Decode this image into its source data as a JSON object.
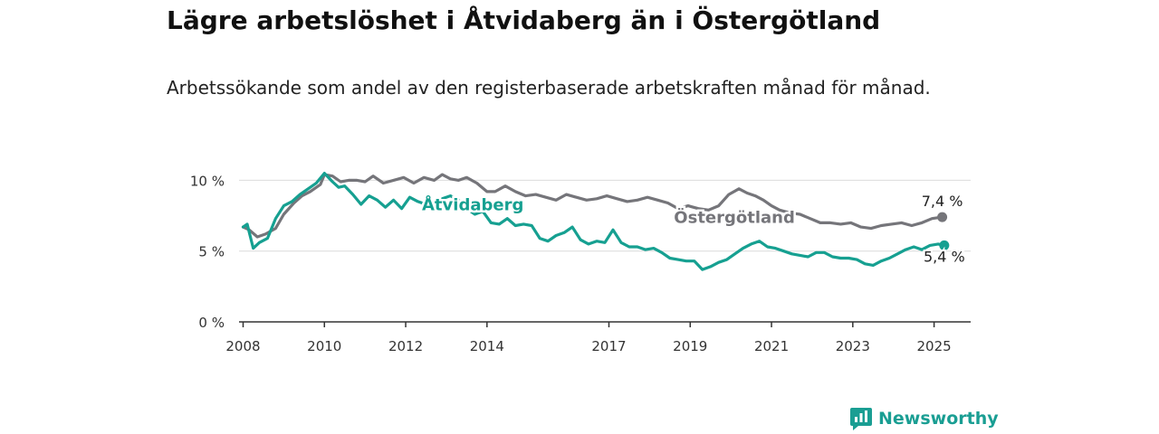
{
  "title": "Lägre arbetslöshet i Åtvidaberg än i Östergötland",
  "subtitle": "Arbetssökande som andel av den registerbaserade arbetskraften månad för månad.",
  "brand": "Newsworthy",
  "colors": {
    "series_a": "#16a091",
    "series_b": "#75757a",
    "grid": "#dcdcdc",
    "axis": "#333333",
    "brand": "#1a9e93"
  },
  "chart_data": {
    "type": "line",
    "ylim": [
      0,
      10.6
    ],
    "xlim": [
      2007.9,
      2025.9
    ],
    "yticks": [
      0,
      5,
      10
    ],
    "ytick_labels": [
      "0 %",
      "5 %",
      "10 %"
    ],
    "xticks": [
      2008,
      2010,
      2012,
      2014,
      2017,
      2019,
      2021,
      2023,
      2025
    ],
    "xtick_labels": [
      "2008",
      "2010",
      "2012",
      "2014",
      "2017",
      "2019",
      "2021",
      "2023",
      "2025"
    ],
    "grid": true,
    "series": [
      {
        "name": "Östergötland",
        "end_label": "7,4 %",
        "x": [
          2008.0,
          2008.15,
          2008.35,
          2008.55,
          2008.8,
          2009.0,
          2009.25,
          2009.45,
          2009.65,
          2009.9,
          2010.0,
          2010.2,
          2010.4,
          2010.6,
          2010.8,
          2011.0,
          2011.2,
          2011.45,
          2011.7,
          2011.95,
          2012.2,
          2012.45,
          2012.7,
          2012.9,
          2013.1,
          2013.3,
          2013.5,
          2013.75,
          2014.0,
          2014.2,
          2014.45,
          2014.7,
          2014.95,
          2015.2,
          2015.45,
          2015.7,
          2015.95,
          2016.2,
          2016.45,
          2016.7,
          2016.95,
          2017.2,
          2017.45,
          2017.7,
          2017.95,
          2018.2,
          2018.45,
          2018.7,
          2018.95,
          2019.2,
          2019.45,
          2019.7,
          2019.95,
          2020.2,
          2020.4,
          2020.6,
          2020.8,
          2021.0,
          2021.2,
          2021.45,
          2021.7,
          2021.95,
          2022.2,
          2022.45,
          2022.7,
          2022.95,
          2023.2,
          2023.45,
          2023.7,
          2023.95,
          2024.2,
          2024.45,
          2024.7,
          2024.95,
          2025.2
        ],
        "values": [
          6.7,
          6.5,
          6.0,
          6.2,
          6.6,
          7.6,
          8.4,
          8.9,
          9.2,
          9.7,
          10.4,
          10.3,
          9.9,
          10.0,
          10.0,
          9.9,
          10.3,
          9.8,
          10.0,
          10.2,
          9.8,
          10.2,
          10.0,
          10.4,
          10.1,
          10.0,
          10.2,
          9.8,
          9.2,
          9.2,
          9.6,
          9.2,
          8.9,
          9.0,
          8.8,
          8.6,
          9.0,
          8.8,
          8.6,
          8.7,
          8.9,
          8.7,
          8.5,
          8.6,
          8.8,
          8.6,
          8.4,
          8.0,
          8.2,
          8.0,
          7.9,
          8.2,
          9.0,
          9.4,
          9.1,
          8.9,
          8.6,
          8.2,
          7.9,
          7.7,
          7.6,
          7.3,
          7.0,
          7.0,
          6.9,
          7.0,
          6.7,
          6.6,
          6.8,
          6.9,
          7.0,
          6.8,
          7.0,
          7.3,
          7.4
        ]
      },
      {
        "name": "Åtvidaberg",
        "end_label": "5,4 %",
        "x": [
          2008.0,
          2008.1,
          2008.25,
          2008.4,
          2008.6,
          2008.8,
          2009.0,
          2009.2,
          2009.4,
          2009.6,
          2009.8,
          2010.0,
          2010.2,
          2010.35,
          2010.5,
          2010.7,
          2010.9,
          2011.1,
          2011.3,
          2011.5,
          2011.7,
          2011.9,
          2012.1,
          2012.3,
          2012.5,
          2012.7,
          2012.9,
          2013.1,
          2013.3,
          2013.5,
          2013.7,
          2013.9,
          2014.1,
          2014.3,
          2014.5,
          2014.7,
          2014.9,
          2015.1,
          2015.3,
          2015.5,
          2015.7,
          2015.9,
          2016.1,
          2016.3,
          2016.5,
          2016.7,
          2016.9,
          2017.1,
          2017.3,
          2017.5,
          2017.7,
          2017.9,
          2018.1,
          2018.3,
          2018.5,
          2018.7,
          2018.9,
          2019.1,
          2019.3,
          2019.5,
          2019.7,
          2019.9,
          2020.1,
          2020.3,
          2020.5,
          2020.7,
          2020.9,
          2021.1,
          2021.3,
          2021.5,
          2021.7,
          2021.9,
          2022.1,
          2022.3,
          2022.5,
          2022.7,
          2022.9,
          2023.1,
          2023.3,
          2023.5,
          2023.7,
          2023.9,
          2024.1,
          2024.3,
          2024.5,
          2024.7,
          2024.9,
          2025.1,
          2025.25
        ],
        "values": [
          6.7,
          6.9,
          5.2,
          5.6,
          5.9,
          7.3,
          8.2,
          8.5,
          9.0,
          9.4,
          9.8,
          10.5,
          9.9,
          9.5,
          9.6,
          9.0,
          8.3,
          8.9,
          8.6,
          8.1,
          8.6,
          8.0,
          8.8,
          8.5,
          8.3,
          8.4,
          8.7,
          8.9,
          8.6,
          8.0,
          7.6,
          7.8,
          7.0,
          6.9,
          7.3,
          6.8,
          6.9,
          6.8,
          5.9,
          5.7,
          6.1,
          6.3,
          6.7,
          5.8,
          5.5,
          5.7,
          5.6,
          6.5,
          5.6,
          5.3,
          5.3,
          5.1,
          5.2,
          4.9,
          4.5,
          4.4,
          4.3,
          4.3,
          3.7,
          3.9,
          4.2,
          4.4,
          4.8,
          5.2,
          5.5,
          5.7,
          5.3,
          5.2,
          5.0,
          4.8,
          4.7,
          4.6,
          4.9,
          4.9,
          4.6,
          4.5,
          4.5,
          4.4,
          4.1,
          4.0,
          4.3,
          4.5,
          4.8,
          5.1,
          5.3,
          5.1,
          5.4,
          5.5,
          5.4
        ]
      }
    ]
  }
}
